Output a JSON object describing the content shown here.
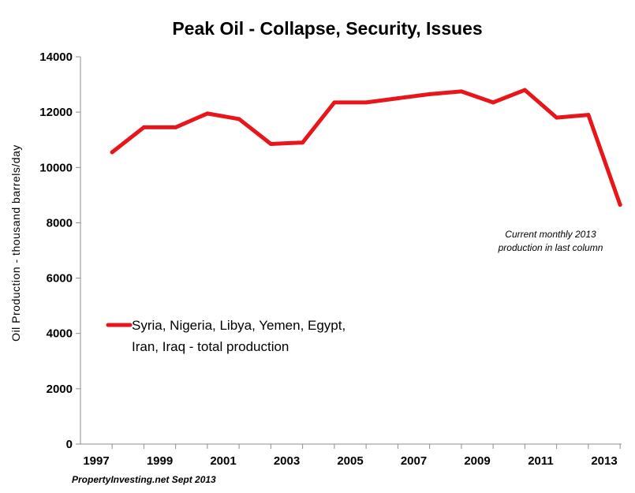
{
  "chart_data": {
    "type": "line",
    "title": "Peak Oil -  Collapse, Security, Issues",
    "ylabel": "Oil  Production  - thousand  barrels/day",
    "xlabel": "",
    "ylim": [
      0,
      14000
    ],
    "yticks": [
      "0",
      "2000",
      "4000",
      "6000",
      "8000",
      "10000",
      "12000",
      "14000"
    ],
    "xtick_labels": [
      "1997",
      "1999",
      "2001",
      "2003",
      "2005",
      "2007",
      "2009",
      "2011",
      "2013"
    ],
    "xlim": [
      1997,
      2013
    ],
    "grid": false,
    "legend_position": "left",
    "line_color": "#e8161b",
    "series": [
      {
        "name": "Syria, Nigeria, Libya, Yemen, Egypt, Iran, Iraq - total production",
        "legend_lines": [
          "Syria, Nigeria, Libya, Yemen, Egypt,",
          "Iran, Iraq - total production"
        ],
        "x": [
          1997.5,
          1998.5,
          1999.5,
          2000.5,
          2001.5,
          2002.5,
          2003.5,
          2004.5,
          2005.5,
          2006.5,
          2007.5,
          2008.5,
          2009.5,
          2010.5,
          2011.5,
          2012.5,
          2013.5
        ],
        "values": [
          10550,
          11450,
          11450,
          11950,
          11750,
          10850,
          10900,
          12350,
          12350,
          12500,
          12650,
          12750,
          12350,
          12800,
          11800,
          11900,
          8650
        ]
      }
    ],
    "annotations": [
      {
        "lines": [
          "Current monthly 2013",
          "production in last column"
        ]
      }
    ],
    "source": "PropertyInvesting.net  Sept 2013"
  }
}
